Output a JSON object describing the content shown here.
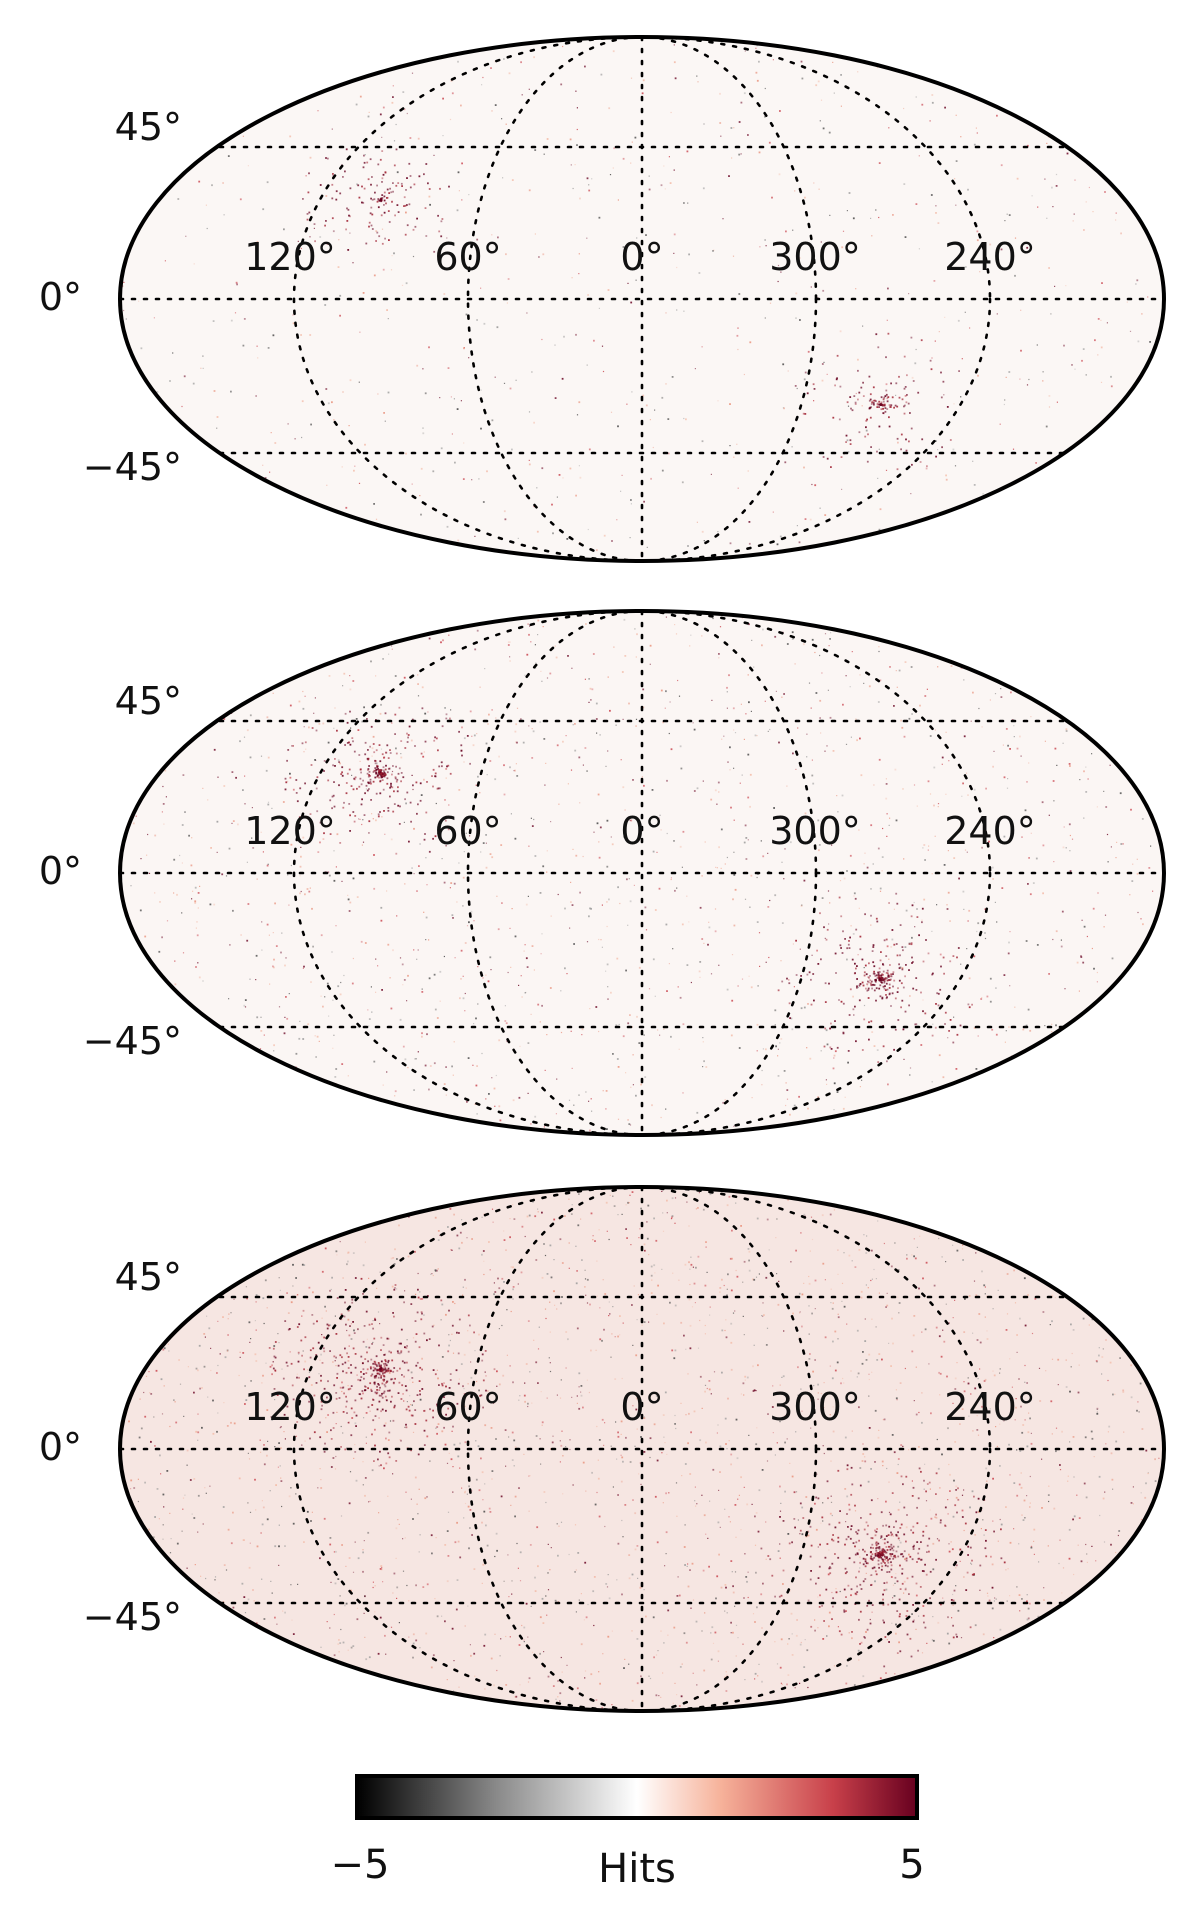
{
  "maps": [
    {
      "id": "map-top",
      "lat_labels": [
        "45°",
        "0°",
        "−45°"
      ],
      "lon_labels": [
        "120°",
        "60°",
        "0°",
        "300°",
        "240°"
      ],
      "intensity": 1
    },
    {
      "id": "map-middle",
      "lat_labels": [
        "45°",
        "0°",
        "−45°"
      ],
      "lon_labels": [
        "120°",
        "60°",
        "0°",
        "300°",
        "240°"
      ],
      "intensity": 2
    },
    {
      "id": "map-bottom",
      "lat_labels": [
        "45°",
        "0°",
        "−45°"
      ],
      "lon_labels": [
        "120°",
        "60°",
        "0°",
        "300°",
        "240°"
      ],
      "intensity": 3
    }
  ],
  "colorbar": {
    "label": "Hits",
    "min_label": "−5",
    "max_label": "5",
    "min": -5,
    "max": 5,
    "colors": [
      "#000000",
      "#777777",
      "#ffffff",
      "#f0a088",
      "#c03040",
      "#67001f"
    ]
  }
}
